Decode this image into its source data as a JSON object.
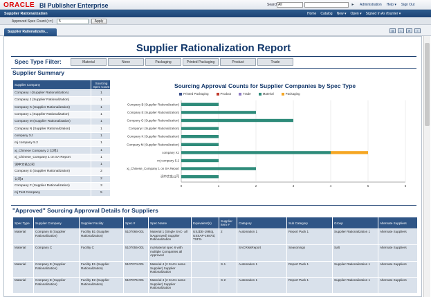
{
  "header": {
    "logo": "ORACLE",
    "product": "BI Publisher Enterprise",
    "search_label": "Search",
    "search_scope": "All",
    "search_go": "▸",
    "links": [
      "Administration",
      "Help ▾",
      "Sign Out"
    ]
  },
  "nav": {
    "title": "Supplier Rationalization",
    "links": [
      "Home",
      "Catalog",
      "New ▾",
      "Open ▾",
      "Signed In As rfsurrier ▾"
    ]
  },
  "params": {
    "label": "Approved Spec Count (>=)",
    "value": "5",
    "apply": "Apply"
  },
  "tab": {
    "label": "Supplier Rationalizatio..."
  },
  "toolbar_icons": [
    "save-icon",
    "export-icon",
    "share-icon",
    "menu-icon"
  ],
  "report": {
    "title": "Supplier Rationalization Report",
    "filter_label": "Spec Type Filter:",
    "filters": [
      "Material",
      "None",
      "Packaging",
      "Printed Packaging",
      "Product",
      "Trade"
    ],
    "summary_heading": "Supplier Summary",
    "summary_columns": [
      "Supplier Company",
      "Sourcing Spec Count"
    ],
    "summary_rows": [
      [
        "Company I (Supplier Rationalization)",
        "1"
      ],
      [
        "Company J (Supplier Rationalization)",
        "1"
      ],
      [
        "Company K (Supplier Rationalization)",
        "1"
      ],
      [
        "Company L (Supplier Rationalization)",
        "1"
      ],
      [
        "Company M (Supplier Rationalization)",
        "1"
      ],
      [
        "Company N (Supplier Rationalization)",
        "1"
      ],
      [
        "company XJ",
        "1"
      ],
      [
        "mj company 5.2",
        "1"
      ],
      [
        "xj_Chinese Company 2 公司2",
        "1"
      ],
      [
        "xj_Chinese_Company 1 on SA Report",
        "1"
      ],
      [
        "词中文名公司",
        "1"
      ],
      [
        "Company E (Supplier Rationalization)",
        "2"
      ],
      [
        "公司3",
        "2"
      ],
      [
        "Company F (Supplier Rationalization)",
        "3"
      ],
      [
        "mj Test Company",
        "5"
      ]
    ],
    "details_heading": "\"Approved\" Sourcing Approval Details for Suppliers",
    "details_columns": [
      "Spec Type",
      "Supplier Company",
      "Supplier Facility",
      "Spec #",
      "Spec Name",
      "Equivalent(s)",
      "Supplier Item #",
      "Category",
      "Sub Category",
      "Group",
      "Alternate Suppliers"
    ],
    "details_rows": [
      [
        "Material",
        "Company B (Supplier Rationalization)",
        "Facility B1 (Supplier Rationalization)",
        "5107066-001",
        "Material 1 (Single SAC- all isApproved) Supplier Rationalization",
        "USJDE-198toj, USSAP-1987ttl, TSFS-",
        "2",
        "Automation 1",
        "Report Pack 1",
        "Supplier Rationalization 1",
        "Alternate Suppliers"
      ],
      [
        "Material",
        "Company C",
        "Facility C",
        "5107055-001",
        "mj Material spec 6 with multiple Companies all Approved",
        "",
        "",
        "SACRiskReport",
        "Seasonings",
        "Salt",
        "Alternate Suppliers"
      ],
      [
        "Material",
        "Company E (Supplier Rationalization)",
        "Facility E1 (Supplier Rationalization)",
        "5107074-001",
        "Material 4 (2 SACs same Supplier) Supplier Rationalization",
        "",
        "S-1",
        "Automation 1",
        "Report Pack 1",
        "Supplier Rationalization 1",
        "Alternate Suppliers"
      ],
      [
        "Material",
        "Company E (Supplier Rationalization)",
        "Facility E2 (Supplier Rationalization)",
        "5107075-001",
        "Material 4 (2 SACs same Supplier) Supplier Rationalization",
        "",
        "S-2",
        "Automation 1",
        "Report Pack 1",
        "Supplier Rationalization 1",
        "Alternate Suppliers"
      ]
    ]
  },
  "colors": {
    "Printed Packaging": "#3a4f8a",
    "Product": "#c0392b",
    "Trade": "#8e7cc3",
    "Material": "#2e8b7a",
    "Packaging": "#f5a623"
  },
  "chart_data": {
    "type": "bar",
    "orientation": "horizontal",
    "stacked": true,
    "title": "Sourcing Approval Counts for Supplier Companies by Spec Type",
    "categories": [
      "Company B (Supplier Rationalization)",
      "Company E (Supplier Rationalization)",
      "Company G (Supplier Rationalization)",
      "Company I (Supplier Rationalization)",
      "Company K (Supplier Rationalization)",
      "Company M (Supplier Rationalization)",
      "company XJ",
      "mj company 5.2",
      "xj_Chinese_Company 1 on SA Report",
      "词中文名公司"
    ],
    "series": [
      {
        "name": "Printed Packaging",
        "values": [
          0,
          0,
          0,
          0,
          0,
          0,
          0,
          0,
          0,
          0
        ]
      },
      {
        "name": "Product",
        "values": [
          0,
          0,
          0,
          0,
          0,
          0,
          0,
          0,
          0,
          0
        ]
      },
      {
        "name": "Trade",
        "values": [
          0,
          0,
          0,
          0,
          0,
          0,
          0,
          0,
          0,
          0
        ]
      },
      {
        "name": "Material",
        "values": [
          1,
          2,
          3,
          1,
          1,
          1,
          4,
          1,
          2,
          1
        ]
      },
      {
        "name": "Packaging",
        "values": [
          0,
          0,
          0,
          0,
          0,
          0,
          1,
          0,
          0,
          0
        ]
      }
    ],
    "xlim": [
      0,
      6
    ],
    "xticks": [
      "0",
      "1",
      "2",
      "3",
      "4",
      "5",
      "6"
    ],
    "legend": "top"
  }
}
